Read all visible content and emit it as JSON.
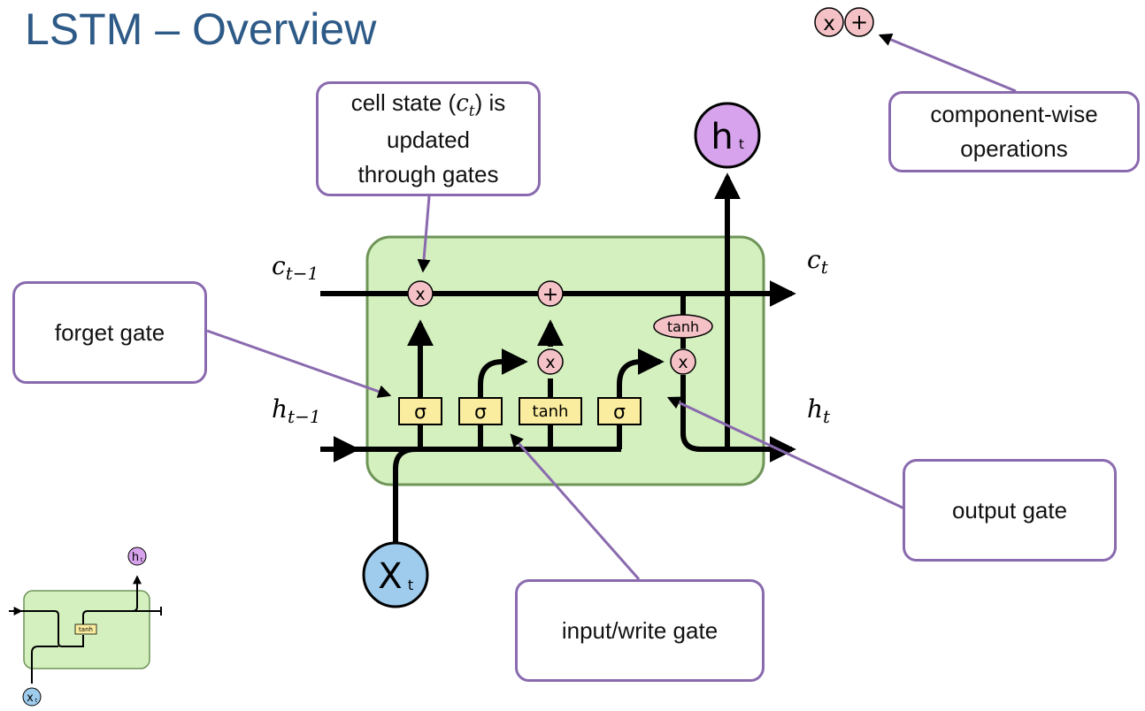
{
  "slide": {
    "title": "LSTM – Overview"
  },
  "legend": {
    "multiply_symbol": "x",
    "add_symbol": "+"
  },
  "callouts": {
    "cell_state": {
      "line1_before": "cell state (",
      "line1_var": "c",
      "line1_sub": "t",
      "line1_after": ") is",
      "line2": "updated",
      "line3": "through gates"
    },
    "component_wise": {
      "line1": "component-wise",
      "line2": "operations"
    },
    "forget_gate": "forget gate",
    "output_gate": "output gate",
    "input_write_gate": "input/write gate"
  },
  "cell_diagram": {
    "input_c": {
      "var": "c",
      "sub": "t−1"
    },
    "input_h": {
      "var": "h",
      "sub": "t−1"
    },
    "output_c": {
      "var": "c",
      "sub": "t"
    },
    "output_h": {
      "var": "h",
      "sub": "t"
    },
    "top_output": {
      "letter": "h",
      "sub": "t"
    },
    "bottom_input": {
      "letter": "X",
      "sub": "t"
    },
    "gates": {
      "sigma": "σ",
      "tanh": "tanh"
    },
    "ops": {
      "multiply": "x",
      "add": "+",
      "tanh": "tanh"
    }
  },
  "thumbnail": {
    "top_output": {
      "letter": "h",
      "sub": "t"
    },
    "bottom_input": {
      "letter": "x",
      "sub": "t"
    },
    "gate": "tanh"
  },
  "colors": {
    "title": "#2e5a87",
    "callout_border": "#8a6aae",
    "pointer": "#8a6aae",
    "cell_fill": "#d4f0bf",
    "cell_border": "#6e9458",
    "gate_fill": "#fbed9f",
    "op_fill": "#f4c2c6",
    "h_node": "#d7a3ec",
    "x_node": "#9fcbed"
  }
}
